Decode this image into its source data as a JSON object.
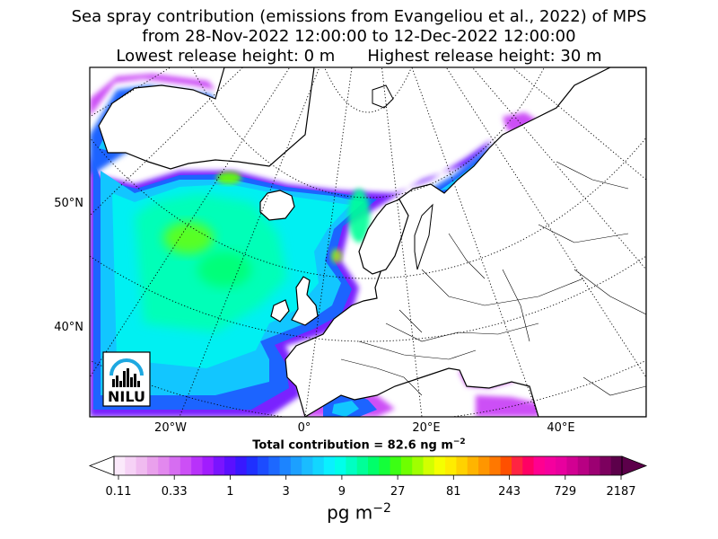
{
  "title": {
    "line1": "Sea spray contribution (emissions from Evangeliou et al., 2022) of MPS",
    "line2": "from 28-Nov-2022 12:00:00 to 12-Dec-2022 12:00:00",
    "line3_left": "Lowest release height: 0 m",
    "line3_right": "Highest release height: 30 m"
  },
  "map": {
    "lat_labels": [
      "50°N",
      "40°N"
    ],
    "lon_labels": [
      "20°W",
      "0°",
      "20°E",
      "40°E"
    ],
    "logo_text": "NILU"
  },
  "total_contribution": {
    "prefix": "Total contribution = 82.6 ng m",
    "exp": "−2"
  },
  "colorbar": {
    "tick_labels": [
      "0.11",
      "0.33",
      "1",
      "3",
      "9",
      "27",
      "81",
      "243",
      "729",
      "2187"
    ],
    "unit_base": "pg m",
    "unit_exp": "−2",
    "colors": [
      "#fbe9fb",
      "#f6d2f6",
      "#f0bbf0",
      "#e9a0ec",
      "#e288ee",
      "#d66df1",
      "#cc4ff6",
      "#b832fa",
      "#a11cfe",
      "#7a14ff",
      "#5a10ff",
      "#3818ff",
      "#1f30ff",
      "#1c4cff",
      "#1d68ff",
      "#1c84ff",
      "#1ca0ff",
      "#1abcff",
      "#12d6ff",
      "#0af0ff",
      "#00ffea",
      "#00ffc2",
      "#00ff98",
      "#00ff6a",
      "#14ff3a",
      "#3cff14",
      "#6eff00",
      "#a0ff00",
      "#d2ff00",
      "#f5ff00",
      "#ffec00",
      "#ffd200",
      "#ffb400",
      "#ff9600",
      "#ff7800",
      "#ff5000",
      "#ff2442",
      "#ff0064",
      "#ff0090",
      "#f5009e",
      "#e8009e",
      "#d20092",
      "#b80083",
      "#9c0072",
      "#7c005e",
      "#5c004a"
    ]
  }
}
